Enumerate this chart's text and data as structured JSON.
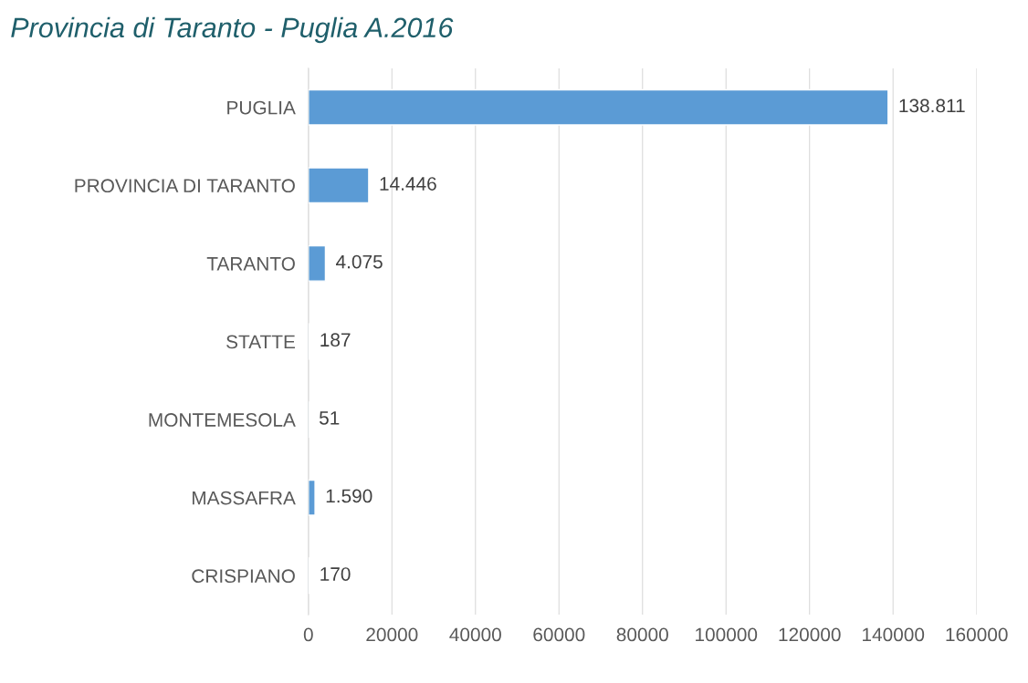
{
  "chart_data": {
    "type": "bar",
    "orientation": "horizontal",
    "title": "Provincia di Taranto - Puglia A.2016",
    "categories": [
      "PUGLIA",
      "PROVINCIA DI TARANTO",
      "TARANTO",
      "STATTE",
      "MONTEMESOLA",
      "MASSAFRA",
      "CRISPIANO"
    ],
    "values": [
      138811,
      14446,
      4075,
      187,
      51,
      1590,
      170
    ],
    "value_labels": [
      "138.811",
      "14.446",
      "4.075",
      "187",
      "51",
      "1.590",
      "170"
    ],
    "color": "#5b9bd5",
    "xlim": [
      0,
      160000
    ],
    "xticks": [
      0,
      20000,
      40000,
      60000,
      80000,
      100000,
      120000,
      140000,
      160000
    ],
    "grid": "x",
    "legend": false
  }
}
